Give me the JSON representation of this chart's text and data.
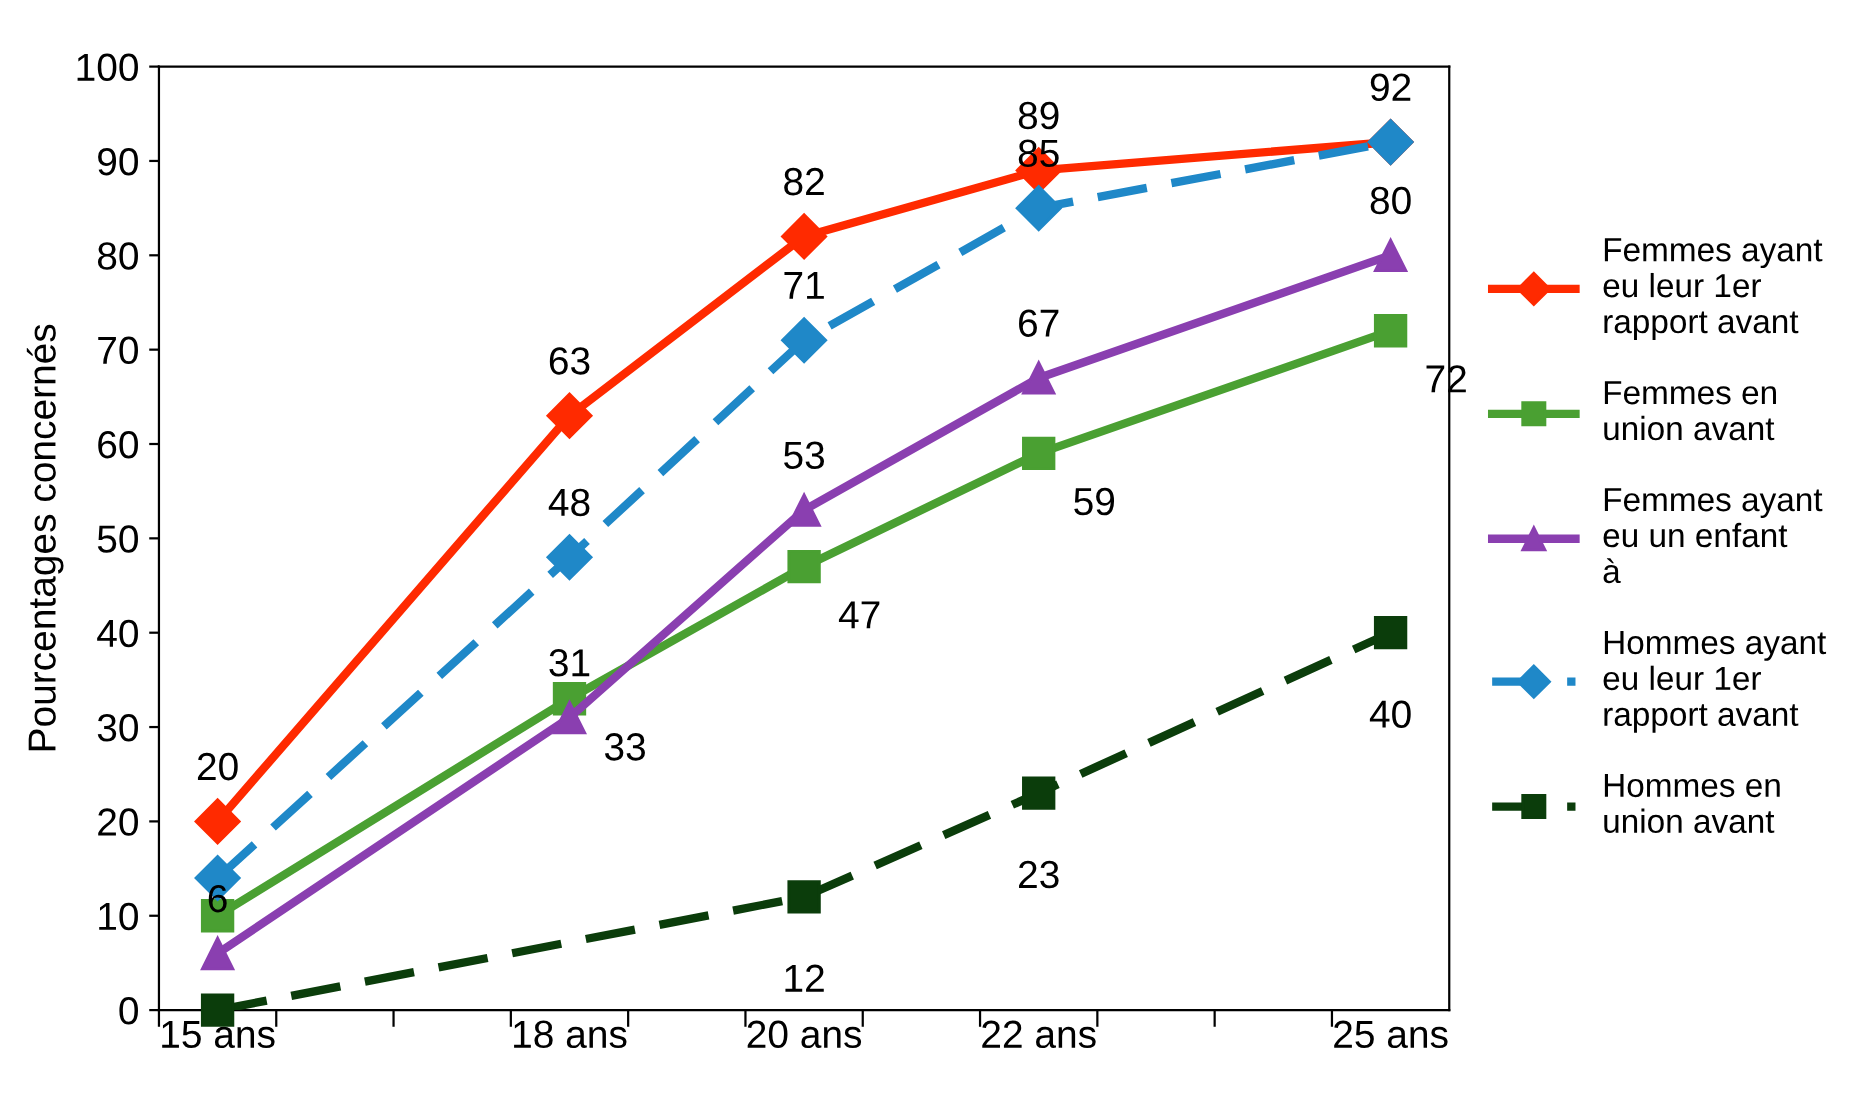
{
  "chart_data": {
    "type": "line",
    "ylabel": "Pourcentages concernés",
    "categories": [
      "15 ans",
      null,
      null,
      "18 ans",
      null,
      "20 ans",
      null,
      "22 ans",
      null,
      null,
      "25 ans"
    ],
    "ylim": [
      0,
      100
    ],
    "yticks": [
      0,
      10,
      20,
      30,
      40,
      50,
      60,
      70,
      80,
      90,
      100
    ],
    "grid": false,
    "legend": "right",
    "series": [
      {
        "name": "Femmes ayant eu leur 1er rapport avant",
        "color": "#ff2a00",
        "marker": "diamond",
        "line_style": "solid",
        "values": [
          20,
          null,
          null,
          63,
          null,
          82,
          null,
          89,
          null,
          null,
          92
        ],
        "value_labels": [
          "20",
          null,
          null,
          "63",
          null,
          "82",
          null,
          "89",
          null,
          null,
          "92"
        ]
      },
      {
        "name": "Femmes en union avant",
        "color": "#4aa032",
        "marker": "square",
        "line_style": "solid",
        "values": [
          10,
          null,
          null,
          33,
          null,
          47,
          null,
          59,
          null,
          null,
          72
        ],
        "value_labels": [
          null,
          null,
          null,
          "33",
          null,
          "47",
          null,
          "59",
          null,
          null,
          "72"
        ]
      },
      {
        "name": "Femmes ayant eu un enfant à",
        "color": "#8a3fb0",
        "marker": "triangle",
        "line_style": "solid",
        "values": [
          6,
          null,
          null,
          31,
          null,
          53,
          null,
          67,
          null,
          null,
          80
        ],
        "value_labels": [
          "6",
          null,
          null,
          "31",
          null,
          "53",
          null,
          "67",
          null,
          null,
          "80"
        ]
      },
      {
        "name": "Hommes ayant eu leur 1er rapport avant",
        "color": "#1f88c8",
        "marker": "diamond",
        "line_style": "dashed",
        "values": [
          14,
          null,
          null,
          48,
          null,
          71,
          null,
          85,
          null,
          null,
          92
        ],
        "value_labels": [
          null,
          null,
          null,
          "48",
          null,
          "71",
          null,
          "85",
          null,
          null,
          null
        ]
      },
      {
        "name": "Hommes en union avant",
        "color": "#0b3d0b",
        "marker": "square",
        "line_style": "dashed",
        "values": [
          0,
          null,
          null,
          null,
          null,
          12,
          null,
          23,
          null,
          null,
          40
        ],
        "value_labels": [
          null,
          null,
          null,
          null,
          null,
          "12",
          null,
          "23",
          null,
          null,
          "40"
        ]
      }
    ]
  }
}
